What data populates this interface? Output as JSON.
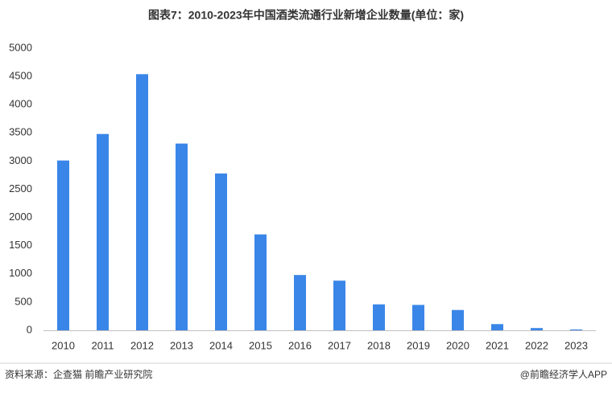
{
  "chart_data": {
    "type": "bar",
    "title": "图表7：2010-2023年中国酒类流通行业新增企业数量(单位：家)",
    "categories": [
      "2010",
      "2011",
      "2012",
      "2013",
      "2014",
      "2015",
      "2016",
      "2017",
      "2018",
      "2019",
      "2020",
      "2021",
      "2022",
      "2023"
    ],
    "values": [
      3010,
      3480,
      4540,
      3310,
      2780,
      1700,
      980,
      880,
      460,
      450,
      360,
      110,
      40,
      15
    ],
    "color": "#3a86e8",
    "ylim": [
      0,
      5000
    ],
    "yticks": [
      0,
      500,
      1000,
      1500,
      2000,
      2500,
      3000,
      3500,
      4000,
      4500,
      5000
    ],
    "grid": false
  },
  "footer": {
    "source": "资料来源：企查猫 前瞻产业研究院",
    "brand": "@前瞻经济学人APP"
  }
}
